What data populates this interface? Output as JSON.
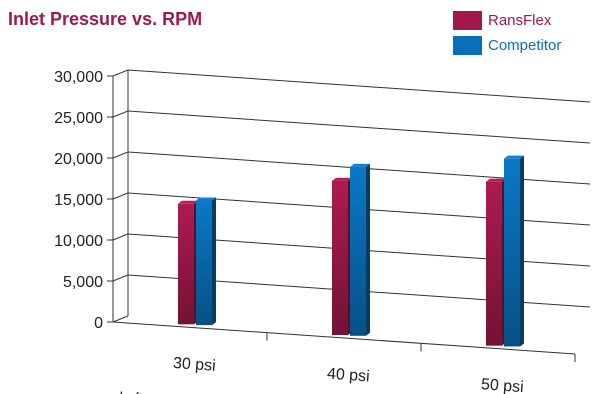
{
  "chart_data": {
    "type": "bar",
    "title": "Inlet Pressure vs. RPM",
    "categories": [
      "30 psi",
      "40 psi",
      "50 psi"
    ],
    "series": [
      {
        "name": "RansFlex",
        "values": [
          14700,
          18800,
          20000
        ],
        "color": "#a0194a"
      },
      {
        "name": "Competitor",
        "values": [
          15200,
          20600,
          22900
        ],
        "color": "#0a6fb8"
      }
    ],
    "yticks": [
      "0",
      "5,000",
      "10,000",
      "15,000",
      "20,000",
      "25,000",
      "30,000"
    ],
    "ylim": [
      0,
      30000
    ],
    "xlabel": "Left...t",
    "ylabel": "",
    "grid": true,
    "legend": "top-right"
  }
}
